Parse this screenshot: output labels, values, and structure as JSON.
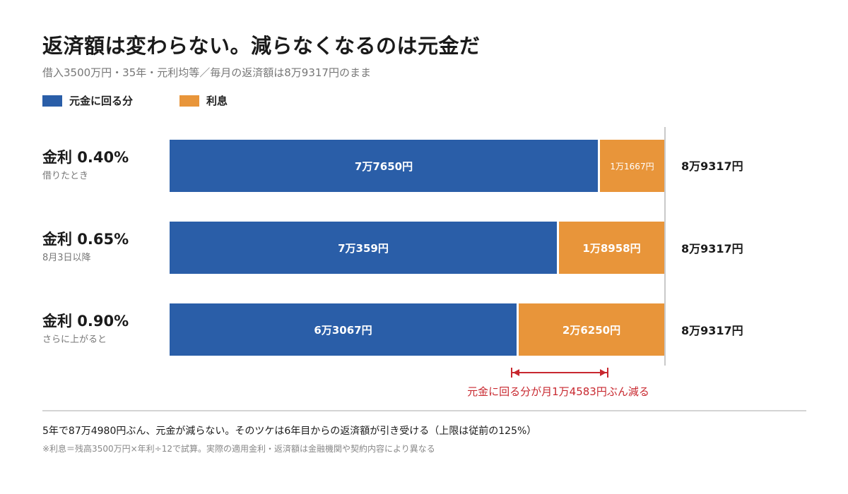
{
  "title": "返済額は変わらない。減らなくなるのは元金だ",
  "subtitle": "借入3500万円・35年・元利均等／毎月の返済額は8万9317円のまま",
  "legend": {
    "principal": "元金に回る分",
    "interest": "利息"
  },
  "colors": {
    "principal": "#2a5ea8",
    "interest": "#e8953a",
    "accent": "#c8282f"
  },
  "rows": [
    {
      "rate": "金利 0.40%",
      "note": "借りたとき",
      "principal_label": "7万7650円",
      "interest_label": "1万1667円",
      "total": "8万9317円"
    },
    {
      "rate": "金利 0.65%",
      "note": "8月3日以降",
      "principal_label": "7万359円",
      "interest_label": "1万8958円",
      "total": "8万9317円"
    },
    {
      "rate": "金利 0.90%",
      "note": "さらに上がると",
      "principal_label": "6万3067円",
      "interest_label": "2万6250円",
      "total": "8万9317円"
    }
  ],
  "annotation": "元金に回る分が月1万4583円ぶん減る",
  "footnote_main": "5年で87万4980円ぶん、元金が減らない。そのツケは6年目からの返済額が引き受ける（上限は従前の125%）",
  "footnote_small": "※利息＝残高3500万円×年利÷12で試算。実際の適用金利・返済額は金融機関や契約内容により異なる",
  "chart_data": {
    "type": "bar",
    "stacked": true,
    "orientation": "horizontal",
    "categories": [
      "金利 0.40%",
      "金利 0.65%",
      "金利 0.90%"
    ],
    "series": [
      {
        "name": "元金に回る分",
        "values": [
          77650,
          70359,
          63067
        ]
      },
      {
        "name": "利息",
        "values": [
          11667,
          18958,
          26250
        ]
      }
    ],
    "xlim": [
      0,
      89317
    ],
    "legend_position": "top-left",
    "grid": false
  }
}
